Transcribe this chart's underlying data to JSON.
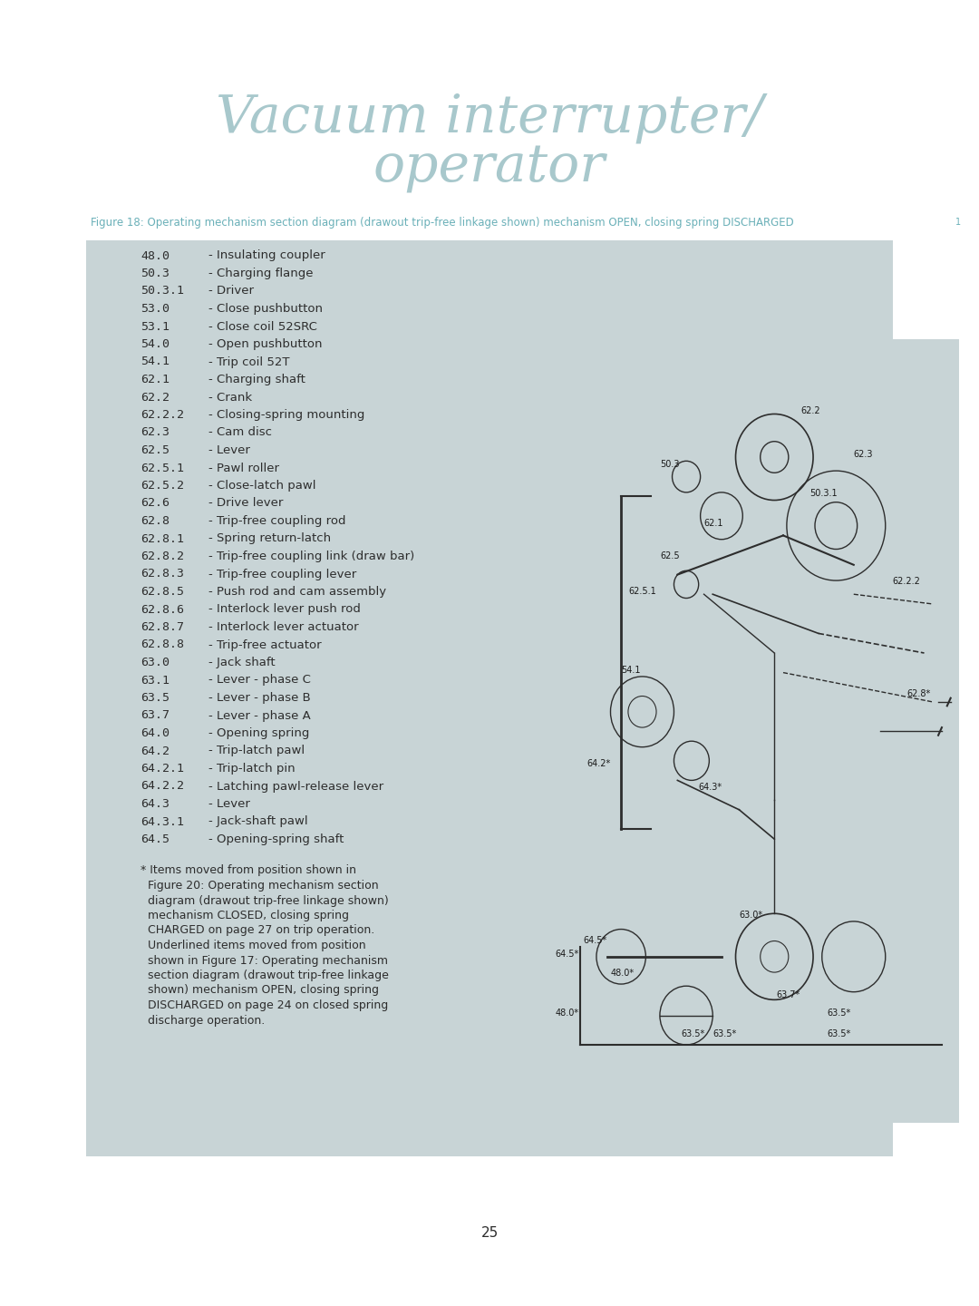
{
  "bg_color": "#ffffff",
  "panel_color": "#c8d4d6",
  "title_line1": "Vacuum interrupter/",
  "title_line2": "operator",
  "title_color": "#a8c8cc",
  "figure_caption": "Figure 18: Operating mechanism section diagram (drawout trip-free linkage shown) mechanism OPEN, closing spring DISCHARGED",
  "figure_caption_color": "#6ab0b8",
  "page_number": "25",
  "legend_items": [
    [
      "48.0",
      "- Insulating coupler"
    ],
    [
      "50.3",
      "- Charging flange"
    ],
    [
      "50.3.1",
      "- Driver"
    ],
    [
      "53.0",
      "- Close pushbutton"
    ],
    [
      "53.1",
      "- Close coil 52SRC"
    ],
    [
      "54.0",
      "- Open pushbutton"
    ],
    [
      "54.1",
      "- Trip coil 52T"
    ],
    [
      "62.1",
      "- Charging shaft"
    ],
    [
      "62.2",
      "- Crank"
    ],
    [
      "62.2.2",
      "- Closing-spring mounting"
    ],
    [
      "62.3",
      "- Cam disc"
    ],
    [
      "62.5",
      "- Lever"
    ],
    [
      "62.5.1",
      "- Pawl roller"
    ],
    [
      "62.5.2",
      "- Close-latch pawl"
    ],
    [
      "62.6",
      "- Drive lever"
    ],
    [
      "62.8",
      "- Trip-free coupling rod"
    ],
    [
      "62.8.1",
      "- Spring return-latch"
    ],
    [
      "62.8.2",
      "- Trip-free coupling link (draw bar)"
    ],
    [
      "62.8.3",
      "- Trip-free coupling lever"
    ],
    [
      "62.8.5",
      "- Push rod and cam assembly"
    ],
    [
      "62.8.6",
      "- Interlock lever push rod"
    ],
    [
      "62.8.7",
      "- Interlock lever actuator"
    ],
    [
      "62.8.8",
      "- Trip-free actuator"
    ],
    [
      "63.0",
      "- Jack shaft"
    ],
    [
      "63.1",
      "- Lever - phase C"
    ],
    [
      "63.5",
      "- Lever - phase B"
    ],
    [
      "63.7",
      "- Lever - phase A"
    ],
    [
      "64.0",
      "- Opening spring"
    ],
    [
      "64.2",
      "- Trip-latch pawl"
    ],
    [
      "64.2.1",
      "- Trip-latch pin"
    ],
    [
      "64.2.2",
      "- Latching pawl-release lever"
    ],
    [
      "64.3",
      "- Lever"
    ],
    [
      "64.3.1",
      "- Jack-shaft pawl"
    ],
    [
      "64.5",
      "- Opening-spring shaft"
    ]
  ],
  "footnote": "* Items moved from position shown in\n  Figure 20: Operating mechanism section\n  diagram (drawout trip-free linkage shown)\n  mechanism CLOSED, closing spring\n  CHARGED on page 27 on trip operation.\n  Underlined items moved from position\n  shown in Figure 17: Operating mechanism\n  section diagram (drawout trip-free linkage\n  shown) mechanism OPEN, closing spring\n  DISCHARGED on page 24 on closed spring\n  discharge operation.",
  "text_color": "#2d2d2d",
  "font_size_legend": 9.5,
  "font_size_footnote": 9.0
}
